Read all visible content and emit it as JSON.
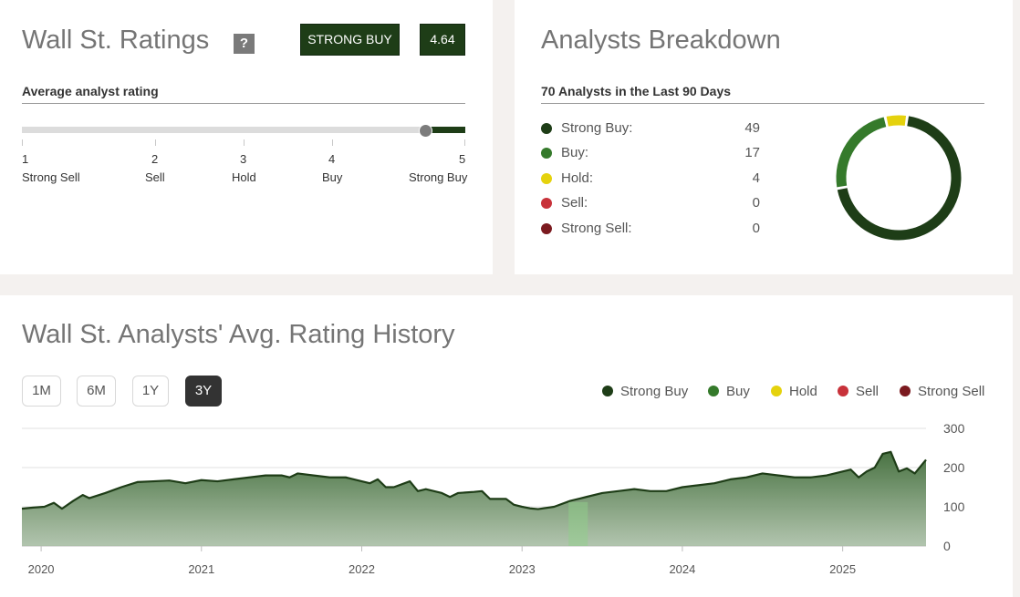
{
  "ratings": {
    "title": "Wall St. Ratings",
    "help_label": "?",
    "rating_label": "STRONG BUY",
    "score": "4.64",
    "score_value": 4.64,
    "subtitle": "Average analyst rating",
    "scale": [
      {
        "num": "1",
        "label": "Strong Sell"
      },
      {
        "num": "2",
        "label": "Sell"
      },
      {
        "num": "3",
        "label": "Hold"
      },
      {
        "num": "4",
        "label": "Buy"
      },
      {
        "num": "5",
        "label": "Strong Buy"
      }
    ]
  },
  "breakdown": {
    "title": "Analysts Breakdown",
    "subtitle": "70 Analysts in the Last 90 Days",
    "rows": [
      {
        "label": "Strong Buy:",
        "count": "49",
        "color": "#1e3d17"
      },
      {
        "label": "Buy:",
        "count": "17",
        "color": "#357a2b"
      },
      {
        "label": "Hold:",
        "count": "4",
        "color": "#e5d20d"
      },
      {
        "label": "Sell:",
        "count": "0",
        "color": "#c8323a"
      },
      {
        "label": "Strong Sell:",
        "count": "0",
        "color": "#7b1a1f"
      }
    ]
  },
  "history": {
    "title": "Wall St. Analysts' Avg. Rating History",
    "ranges": [
      "1M",
      "6M",
      "1Y",
      "3Y"
    ],
    "active_range": "3Y",
    "legend": [
      {
        "label": "Strong Buy",
        "color": "#1e3d17"
      },
      {
        "label": "Buy",
        "color": "#357a2b"
      },
      {
        "label": "Hold",
        "color": "#e5d20d"
      },
      {
        "label": "Sell",
        "color": "#c8323a"
      },
      {
        "label": "Strong Sell",
        "color": "#7b1a1f"
      }
    ]
  },
  "chart_data": [
    {
      "type": "pie",
      "categories": [
        "Strong Buy",
        "Buy",
        "Hold",
        "Sell",
        "Strong Sell"
      ],
      "values": [
        49,
        17,
        4,
        0,
        0
      ],
      "colors": [
        "#1e3d17",
        "#357a2b",
        "#e5d20d",
        "#c8323a",
        "#7b1a1f"
      ],
      "donut": true
    },
    {
      "type": "area",
      "x_tick_labels": [
        "2020",
        "2021",
        "2022",
        "2023",
        "2024",
        "2025"
      ],
      "y_tick_labels": [
        "0",
        "100",
        "200",
        "300"
      ],
      "ylim": [
        0,
        300
      ],
      "xlim": [
        2019.88,
        2025.52
      ],
      "grid": true,
      "highlight_band": [
        2023.29,
        2023.41
      ],
      "x": [
        2019.88,
        2019.95,
        2020.02,
        2020.08,
        2020.13,
        2020.2,
        2020.26,
        2020.3,
        2020.4,
        2020.5,
        2020.6,
        2020.7,
        2020.8,
        2020.9,
        2021.0,
        2021.1,
        2021.2,
        2021.3,
        2021.4,
        2021.5,
        2021.55,
        2021.6,
        2021.7,
        2021.8,
        2021.9,
        2022.0,
        2022.05,
        2022.1,
        2022.15,
        2022.2,
        2022.3,
        2022.35,
        2022.4,
        2022.5,
        2022.55,
        2022.6,
        2022.7,
        2022.75,
        2022.8,
        2022.9,
        2022.95,
        2023.0,
        2023.05,
        2023.1,
        2023.2,
        2023.3,
        2023.4,
        2023.5,
        2023.6,
        2023.7,
        2023.8,
        2023.9,
        2024.0,
        2024.1,
        2024.2,
        2024.3,
        2024.4,
        2024.5,
        2024.6,
        2024.7,
        2024.8,
        2024.9,
        2025.0,
        2025.05,
        2025.1,
        2025.15,
        2025.2,
        2025.25,
        2025.3,
        2025.35,
        2025.4,
        2025.45,
        2025.5,
        2025.52
      ],
      "series": [
        {
          "values": [
            95,
            98,
            100,
            110,
            95,
            115,
            130,
            122,
            135,
            150,
            163,
            165,
            167,
            160,
            168,
            165,
            170,
            175,
            180,
            180,
            175,
            185,
            180,
            175,
            175,
            165,
            160,
            170,
            150,
            150,
            165,
            140,
            145,
            135,
            125,
            135,
            138,
            140,
            120,
            120,
            105,
            100,
            96,
            94,
            100,
            115,
            125,
            135,
            140,
            145,
            140,
            140,
            150,
            155,
            160,
            170,
            175,
            185,
            180,
            175,
            175,
            180,
            190,
            195,
            175,
            190,
            200,
            235,
            240,
            190,
            198,
            185,
            210,
            220
          ]
        }
      ]
    }
  ]
}
